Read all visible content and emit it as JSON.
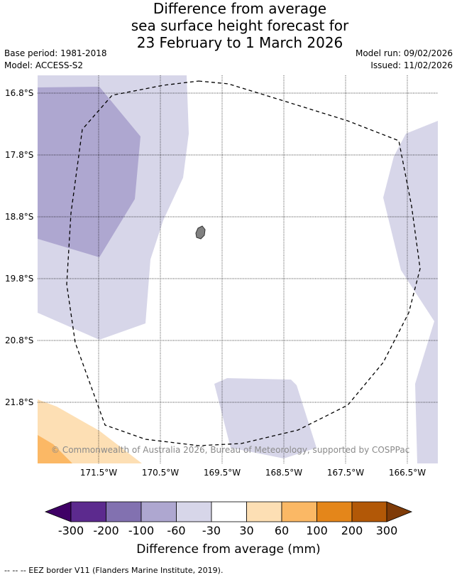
{
  "title": {
    "line1": "Difference from average",
    "line2": "sea surface height forecast for",
    "line3": "23 February to 1 March 2026"
  },
  "meta": {
    "base_period": "Base period: 1981-2018",
    "model": "Model: ACCESS-S2",
    "model_run": "Model run: 09/02/2026",
    "issued": "Issued: 11/02/2026"
  },
  "map": {
    "lat_labels": [
      "16.8°S",
      "17.8°S",
      "18.8°S",
      "19.8°S",
      "20.8°S",
      "21.8°S"
    ],
    "lon_labels": [
      "171.5°W",
      "170.5°W",
      "169.5°W",
      "168.5°W",
      "167.5°W",
      "166.5°W"
    ],
    "credit": "© Commonwealth of Australia 2026, Bureau of Meteorology, supported by COSPPac",
    "colors": {
      "land": "#808080",
      "eez_border": "#000000",
      "gridline": "#000000"
    }
  },
  "colorbar": {
    "title": "Difference from average (mm)",
    "tick_labels": [
      "-300",
      "-200",
      "-100",
      "-60",
      "-30",
      "30",
      "60",
      "100",
      "200",
      "300"
    ],
    "colors": [
      "#3f0066",
      "#5c2a8e",
      "#8271b0",
      "#aea7d0",
      "#d7d6e9",
      "#ffffff",
      "#fddfb4",
      "#fbb865",
      "#e4861a",
      "#b25807",
      "#7f3b08"
    ]
  },
  "footnote": "--  --  -- EEZ border V11 (Flanders Marine Institute, 2019)."
}
